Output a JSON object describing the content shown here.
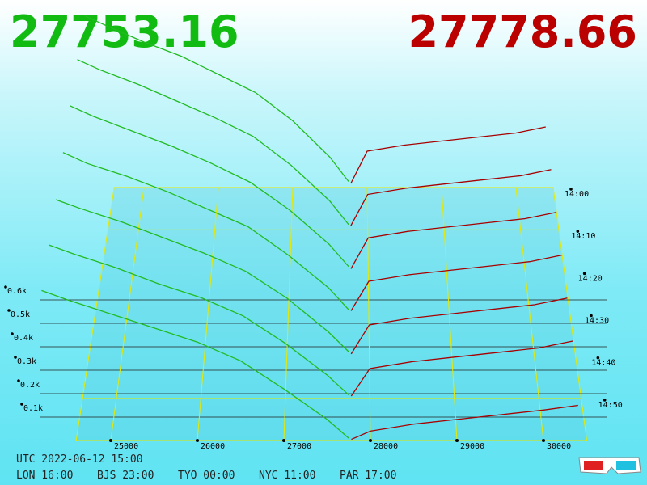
{
  "chart_data": {
    "type": "depth3d",
    "bid_price": 27753.16,
    "ask_price": 27778.66,
    "bid_color": "#22bb22",
    "ask_color": "#a80000",
    "xticks": [
      25000,
      26000,
      27000,
      28000,
      29000,
      30000
    ],
    "xlim": [
      24600,
      30500
    ],
    "yticks": [
      {
        "value": 100,
        "label": "0.1k"
      },
      {
        "value": 200,
        "label": "0.2k"
      },
      {
        "value": 300,
        "label": "0.3k"
      },
      {
        "value": 400,
        "label": "0.4k"
      },
      {
        "value": 500,
        "label": "0.5k"
      },
      {
        "value": 600,
        "label": "0.6k"
      }
    ],
    "zticks": [
      {
        "value": 0,
        "label": "14:00"
      },
      {
        "value": 10,
        "label": "14:10"
      },
      {
        "value": 20,
        "label": "14:20"
      },
      {
        "value": 30,
        "label": "14:30"
      },
      {
        "value": 40,
        "label": "14:40"
      },
      {
        "value": 50,
        "label": "14:50"
      }
    ],
    "zlim": [
      0,
      60
    ],
    "bid_prices": [
      27750,
      27500,
      27000,
      26500,
      26000,
      25500,
      25000,
      24500,
      24200
    ],
    "ask_prices": [
      27780,
      28000,
      28500,
      29000,
      29500,
      30000,
      30400
    ],
    "bids": [
      {
        "z": 0,
        "values": [
          30,
          150,
          330,
          470,
          560,
          650,
          720,
          800,
          850
        ]
      },
      {
        "z": 10,
        "values": [
          25,
          140,
          310,
          450,
          540,
          620,
          700,
          770,
          820
        ]
      },
      {
        "z": 20,
        "values": [
          25,
          130,
          290,
          420,
          510,
          590,
          660,
          730,
          780
        ]
      },
      {
        "z": 30,
        "values": [
          20,
          120,
          270,
          400,
          480,
          560,
          630,
          690,
          740
        ]
      },
      {
        "z": 40,
        "values": [
          20,
          110,
          260,
          380,
          460,
          530,
          600,
          660,
          700
        ]
      },
      {
        "z": 50,
        "values": [
          15,
          100,
          240,
          360,
          440,
          500,
          570,
          630,
          670
        ]
      },
      {
        "z": 60,
        "values": [
          10,
          90,
          220,
          340,
          420,
          480,
          540,
          600,
          640
        ]
      }
    ],
    "asks": [
      {
        "z": 0,
        "values": [
          20,
          180,
          210,
          230,
          250,
          270,
          300
        ]
      },
      {
        "z": 10,
        "values": [
          20,
          170,
          200,
          220,
          240,
          260,
          290
        ]
      },
      {
        "z": 20,
        "values": [
          15,
          160,
          190,
          210,
          230,
          250,
          280
        ]
      },
      {
        "z": 30,
        "values": [
          15,
          150,
          180,
          200,
          220,
          240,
          270
        ]
      },
      {
        "z": 40,
        "values": [
          10,
          140,
          170,
          190,
          210,
          230,
          260
        ]
      },
      {
        "z": 50,
        "values": [
          10,
          130,
          160,
          180,
          200,
          220,
          250
        ]
      },
      {
        "z": 60,
        "values": [
          5,
          40,
          70,
          90,
          110,
          130,
          150
        ]
      }
    ],
    "timestamp": "UTC 2022-06-12 15:00",
    "clocks": [
      "LON 16:00",
      "BJS 23:00",
      "TYO 00:00",
      "NYC 11:00",
      "PAR 17:00"
    ]
  }
}
